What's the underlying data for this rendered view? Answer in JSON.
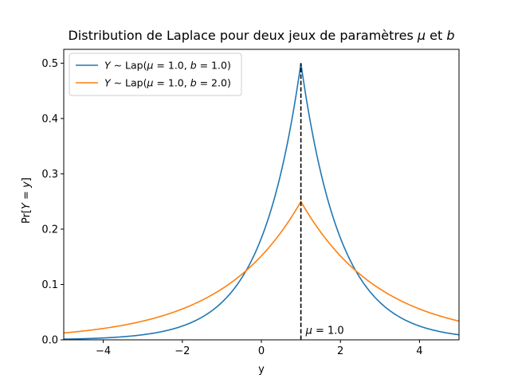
{
  "chart_data": {
    "type": "line",
    "title": "Distribution de Laplace pour deux jeux de paramètres μ et b",
    "title_parts": [
      {
        "text": "Distribution de Laplace pour deux jeux de paramètres ",
        "italic": false
      },
      {
        "text": "μ",
        "italic": true
      },
      {
        "text": " et ",
        "italic": false
      },
      {
        "text": "b",
        "italic": true
      }
    ],
    "xlabel": "y",
    "ylabel": "Pr[Y = y]",
    "ylabel_parts": [
      {
        "text": "Pr[",
        "italic": false
      },
      {
        "text": "Y",
        "italic": true
      },
      {
        "text": " = ",
        "italic": false
      },
      {
        "text": "y",
        "italic": true
      },
      {
        "text": "]",
        "italic": false
      }
    ],
    "xlim": [
      -5,
      5
    ],
    "ylim": [
      0,
      0.525
    ],
    "xticks": [
      -4,
      -2,
      0,
      2,
      4
    ],
    "xtick_labels": [
      "−4",
      "−2",
      "0",
      "2",
      "4"
    ],
    "yticks": [
      0.0,
      0.1,
      0.2,
      0.3,
      0.4,
      0.5
    ],
    "ytick_labels": [
      "0.0",
      "0.1",
      "0.2",
      "0.3",
      "0.4",
      "0.5"
    ],
    "grid": false,
    "legend_position": "top-left",
    "series": [
      {
        "name": "Y ∼ Lap(μ = 1.0, b = 1.0)",
        "name_parts": [
          {
            "text": "Y",
            "italic": true
          },
          {
            "text": " ∼ Lap(",
            "italic": false
          },
          {
            "text": "μ",
            "italic": true
          },
          {
            "text": " = 1.0, ",
            "italic": false
          },
          {
            "text": "b",
            "italic": true
          },
          {
            "text": " = 1.0)",
            "italic": false
          }
        ],
        "color": "#1f77b4",
        "x": [
          -5,
          -4,
          -3,
          -2,
          -1,
          0,
          0.5,
          1,
          1.5,
          2,
          3,
          4,
          5
        ],
        "y": [
          0.0012,
          0.0034,
          0.0092,
          0.0249,
          0.0677,
          0.1839,
          0.3033,
          0.5,
          0.3033,
          0.1839,
          0.0677,
          0.0249,
          0.0092
        ]
      },
      {
        "name": "Y ∼ Lap(μ = 1.0, b = 2.0)",
        "name_parts": [
          {
            "text": "Y",
            "italic": true
          },
          {
            "text": " ∼ Lap(",
            "italic": false
          },
          {
            "text": "μ",
            "italic": true
          },
          {
            "text": " = 1.0, ",
            "italic": false
          },
          {
            "text": "b",
            "italic": true
          },
          {
            "text": " = 2.0)",
            "italic": false
          }
        ],
        "color": "#ff7f0e",
        "x": [
          -5,
          -4,
          -3,
          -2,
          -1,
          0,
          0.5,
          1,
          1.5,
          2,
          3,
          4,
          5
        ],
        "y": [
          0.0124,
          0.0205,
          0.0338,
          0.0558,
          0.092,
          0.1516,
          0.1947,
          0.25,
          0.1947,
          0.1516,
          0.092,
          0.0558,
          0.0338
        ]
      }
    ],
    "vline": {
      "x": 1.0,
      "ymax": 0.5,
      "style": "dashed",
      "color": "#000000"
    },
    "annotation": {
      "x": 1.0,
      "y": 0.005,
      "parts": [
        {
          "text": "μ",
          "italic": true
        },
        {
          "text": " = 1.0",
          "italic": false
        }
      ]
    }
  }
}
